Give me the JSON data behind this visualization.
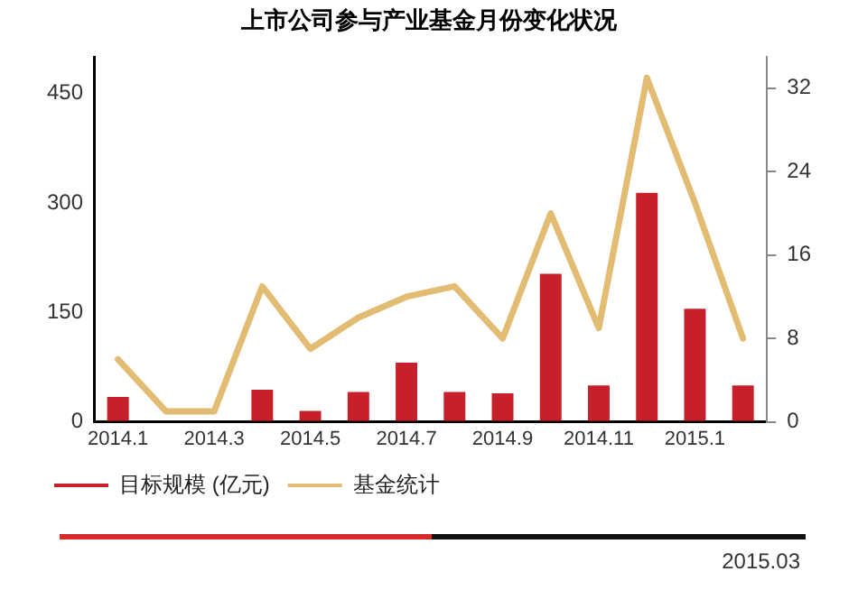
{
  "chart_data": {
    "type": "bar",
    "title": "上市公司参与产业基金月份变化状况",
    "categories": [
      "2014.1",
      null,
      "2014.3",
      null,
      "2014.5",
      null,
      "2014.7",
      null,
      "2014.9",
      null,
      "2014.11",
      null,
      "2015.1",
      null
    ],
    "series": [
      {
        "name": "目标规模 (亿元)",
        "color": "#c8202a",
        "values": [
          34,
          0,
          0,
          44,
          15,
          41,
          81,
          41,
          39,
          203,
          50,
          314,
          155,
          50
        ]
      },
      {
        "name": "基金统计",
        "type": "line",
        "axis": "y2",
        "color": "#e2bc72",
        "values": [
          6,
          1,
          1,
          13,
          7,
          10,
          12,
          13,
          8,
          20,
          9,
          33,
          21,
          8
        ]
      }
    ],
    "ylim": [
      0,
      500
    ],
    "yticks": [
      0,
      150,
      300,
      450
    ],
    "y2lim": [
      0,
      35
    ],
    "y2ticks": [
      0,
      8,
      16,
      24,
      32
    ],
    "grid": false,
    "legend": "bottom",
    "marker": "none",
    "line_style": "solid",
    "annotations": [
      "2015.03"
    ]
  }
}
